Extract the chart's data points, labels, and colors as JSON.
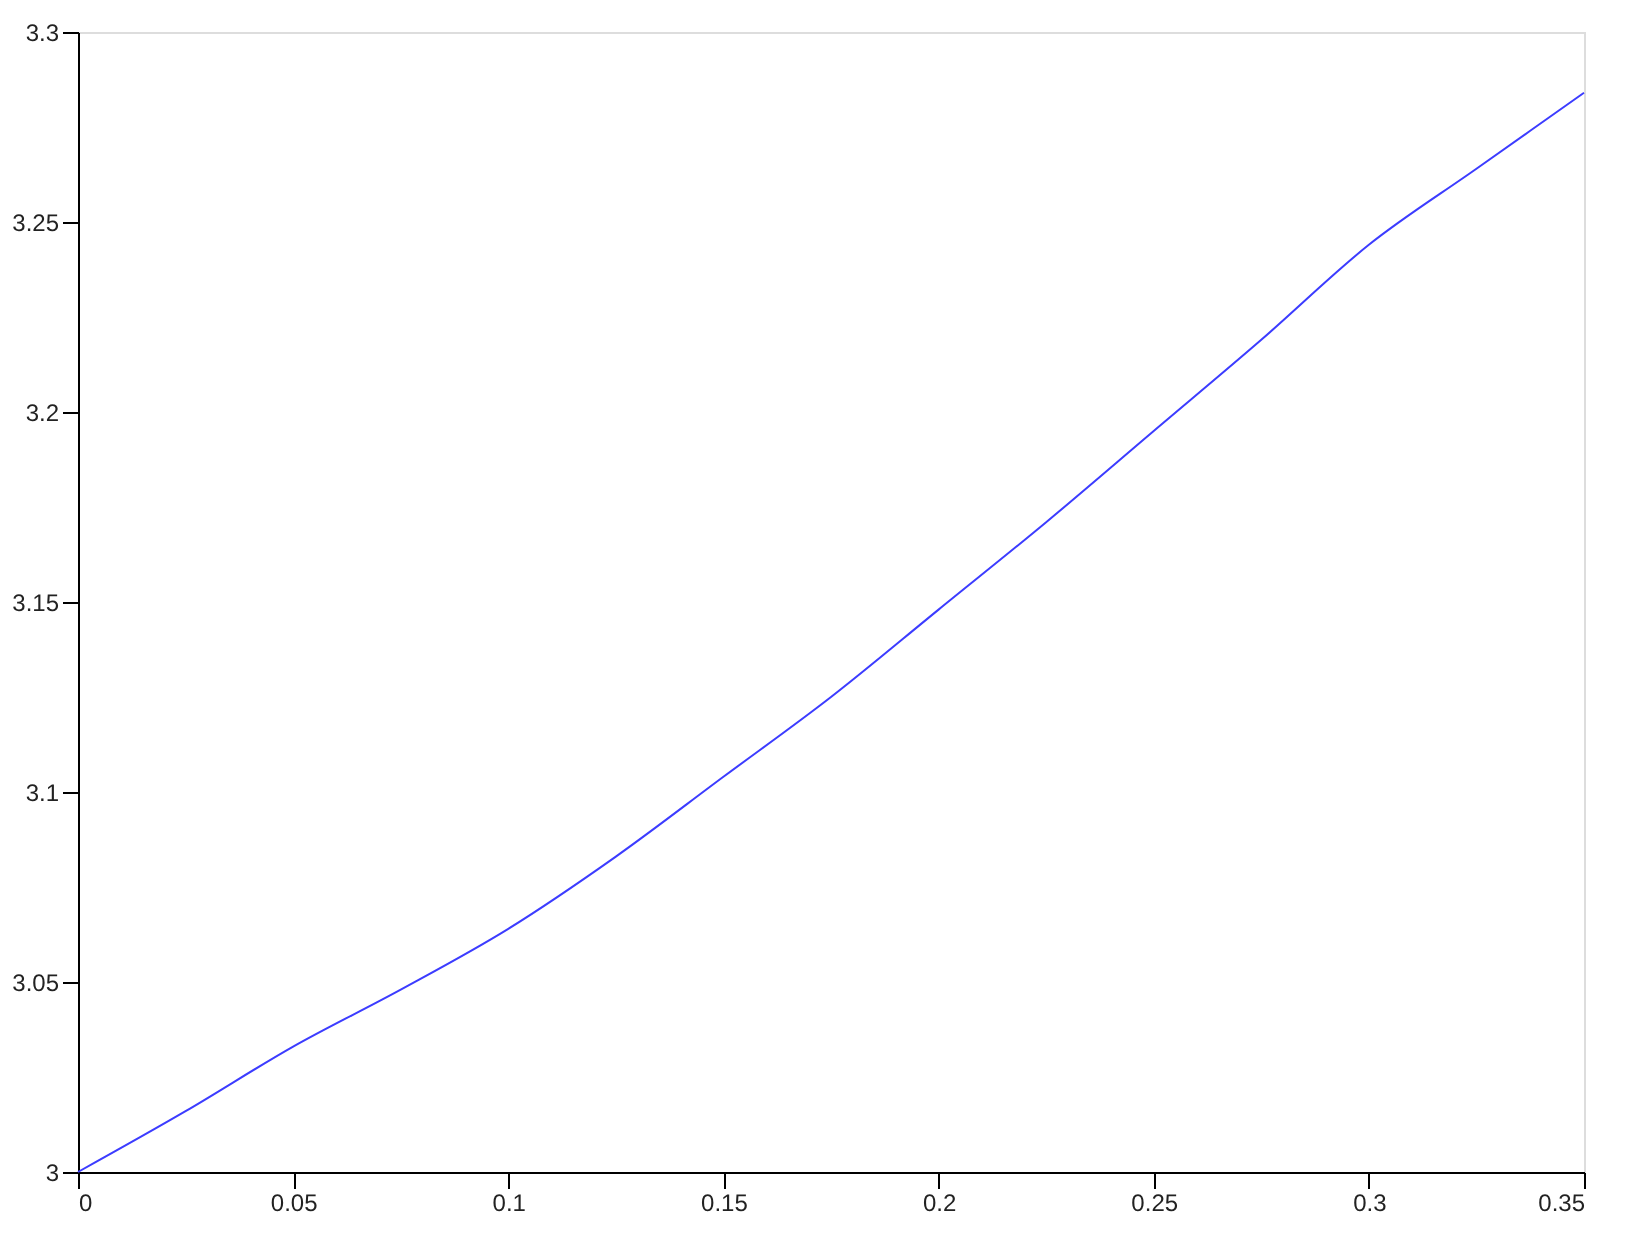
{
  "chart_data": {
    "type": "line",
    "x": [
      0,
      0.025,
      0.05,
      0.075,
      0.1,
      0.125,
      0.15,
      0.175,
      0.2,
      0.225,
      0.25,
      0.275,
      0.3,
      0.325,
      0.35
    ],
    "series": [
      {
        "color": "#3c3cff",
        "values": [
          3.0,
          3.016,
          3.033,
          3.048,
          3.064,
          3.083,
          3.104,
          3.125,
          3.148,
          3.171,
          3.195,
          3.219,
          3.244,
          3.264,
          3.284
        ]
      }
    ],
    "xlim": [
      0,
      0.35
    ],
    "ylim": [
      3,
      3.3
    ],
    "xticks": [
      0,
      0.05,
      0.1,
      0.15,
      0.2,
      0.25,
      0.3,
      0.35
    ],
    "yticks": [
      3,
      3.05,
      3.1,
      3.15,
      3.2,
      3.25,
      3.3
    ],
    "grid": false,
    "marker": "none",
    "line_style": "solid"
  }
}
